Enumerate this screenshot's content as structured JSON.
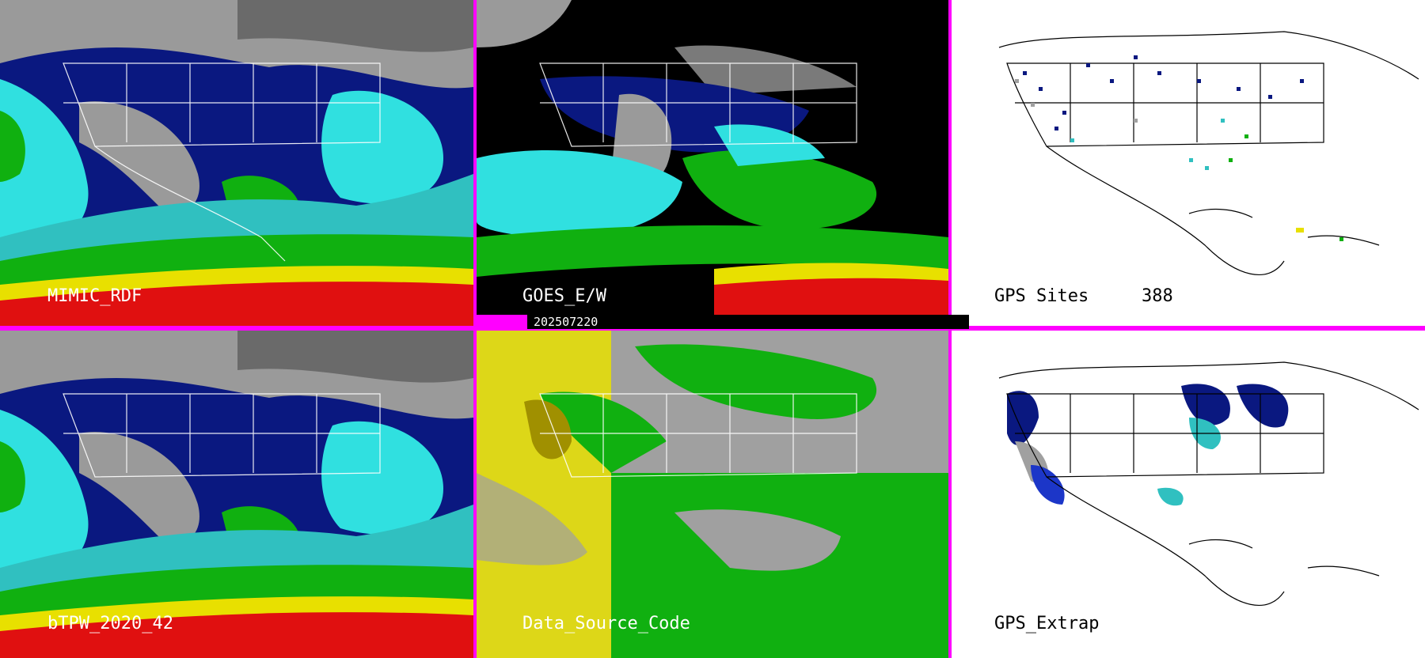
{
  "timestamp": "202507220",
  "panels": {
    "mimic_rdf": {
      "label": "MIMIC_RDF"
    },
    "goes": {
      "label": "GOES_E/W"
    },
    "gps_sites": {
      "label": "GPS Sites",
      "count": "388"
    },
    "btpw": {
      "label": "bTPW_2020_42"
    },
    "dsc": {
      "label": "Data_Source_Code"
    },
    "gps_extrap": {
      "label": "GPS_Extrap"
    }
  },
  "colors": {
    "border": "#ff00ff",
    "gray": "#a0a0a0",
    "navy": "#0a1880",
    "blue": "#1c36c8",
    "cyan": "#30e0e0",
    "green": "#10b010",
    "yellow": "#e8e000",
    "red": "#e01010",
    "olive": "#a09000"
  }
}
